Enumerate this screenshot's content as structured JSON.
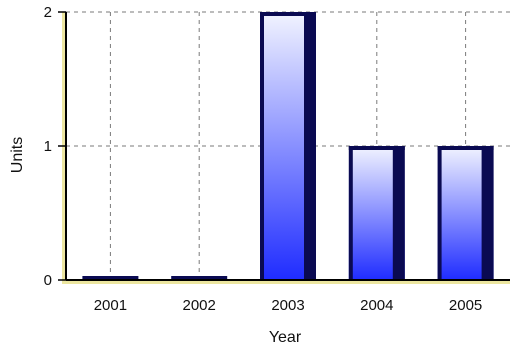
{
  "chart_data": {
    "type": "bar",
    "categories": [
      "2001",
      "2002",
      "2003",
      "2004",
      "2005"
    ],
    "values": [
      0,
      0,
      2,
      1,
      1
    ],
    "xlabel": "Year",
    "ylabel": "Units",
    "ylim": [
      0,
      2
    ],
    "yticks": [
      "0",
      "1",
      "2"
    ],
    "grid": true,
    "legend": "none",
    "colors": {
      "bar_top": "#f2f4ff",
      "bar_bottom": "#1f2cff",
      "bar_shadow": "#0a0a52",
      "axis_shadow": "#ece6a0",
      "grid": "#7a7a7a",
      "axis": "#000000"
    }
  }
}
